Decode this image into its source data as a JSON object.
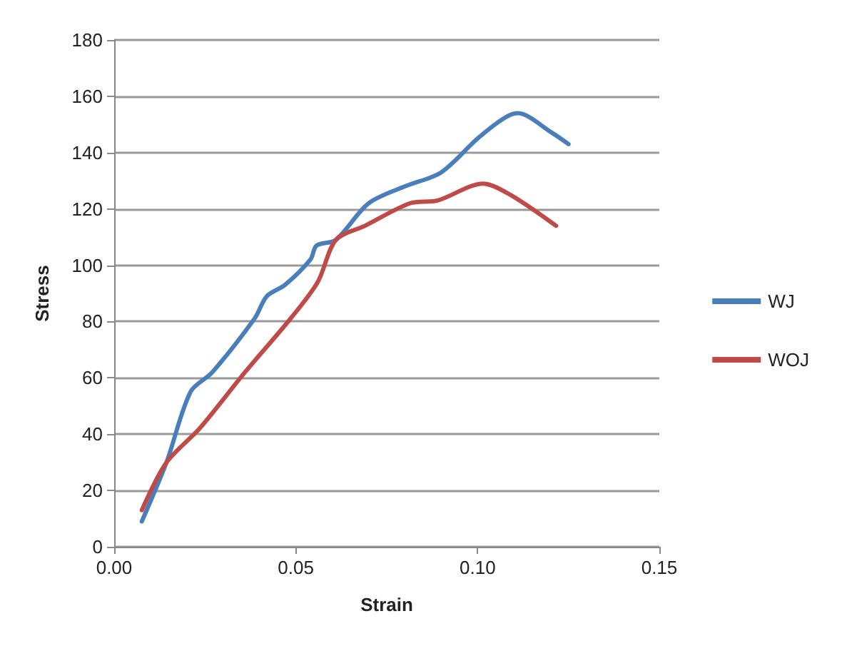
{
  "chart_data": {
    "type": "line",
    "xlabel": "Strain",
    "ylabel": "Stress",
    "xlim": [
      0,
      0.15
    ],
    "xticks": [
      {
        "value": 0,
        "label": "0.00"
      },
      {
        "value": 0.05,
        "label": "0.05"
      },
      {
        "value": 0.1,
        "label": "0.10"
      },
      {
        "value": 0.15,
        "label": "0.15"
      }
    ],
    "ylim": [
      0,
      180
    ],
    "yticks": [
      0,
      20,
      40,
      60,
      80,
      100,
      120,
      140,
      160,
      180
    ],
    "grid": "y",
    "legend": "right",
    "marker": "none",
    "line_style": "solid",
    "series": [
      {
        "name": "WJ",
        "color": "#4a7ebb",
        "x": [
          0.0076,
          0.0144,
          0.021,
          0.027,
          0.0386,
          0.042,
          0.047,
          0.054,
          0.0557,
          0.061,
          0.07,
          0.08,
          0.09,
          0.1,
          0.107,
          0.111,
          0.1205,
          0.125
        ],
        "values": [
          9,
          30,
          55,
          62,
          81,
          89,
          93,
          102,
          107,
          109,
          122,
          128,
          133,
          145,
          152,
          154,
          147,
          143
        ]
      },
      {
        "name": "WOJ",
        "color": "#be4b48",
        "x": [
          0.0076,
          0.0144,
          0.0235,
          0.036,
          0.0485,
          0.056,
          0.061,
          0.069,
          0.0814,
          0.089,
          0.1015,
          0.109,
          0.1216
        ],
        "values": [
          13,
          30,
          42,
          62,
          81,
          94,
          109,
          114,
          122,
          123,
          129,
          125,
          114
        ]
      }
    ]
  }
}
